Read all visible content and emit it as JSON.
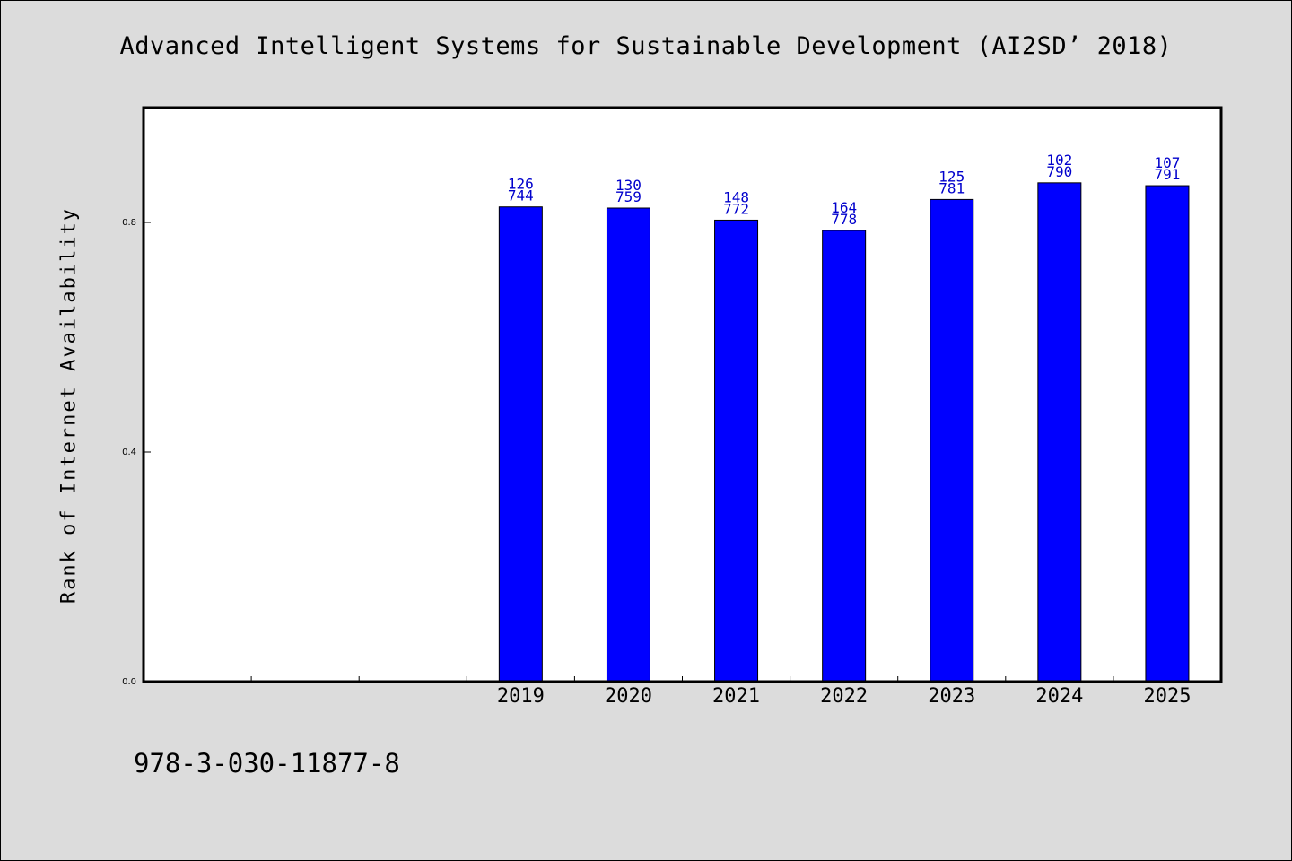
{
  "title": "Advanced Intelligent Systems for Sustainable Development (AI2SD’ 2018)",
  "ylabel": "Rank of Internet Availability",
  "footer": "978-3-030-11877-8",
  "colors": {
    "bar": "#0000ff",
    "label": "#0000cc",
    "plot_bg": "#ffffff",
    "page_bg": "#dcdcdc"
  },
  "chart_data": {
    "type": "bar",
    "categories": [
      "",
      "",
      "",
      "2019",
      "2020",
      "2021",
      "2022",
      "2023",
      "2024",
      "2025"
    ],
    "values": [
      null,
      null,
      null,
      0.827,
      0.825,
      0.804,
      0.786,
      0.84,
      0.869,
      0.864
    ],
    "bar_labels": [
      null,
      null,
      null,
      [
        "126",
        "744"
      ],
      [
        "130",
        "759"
      ],
      [
        "148",
        "772"
      ],
      [
        "164",
        "778"
      ],
      [
        "125",
        "781"
      ],
      [
        "102",
        "790"
      ],
      [
        "107",
        "791"
      ]
    ],
    "yticks": [
      0.0,
      0.4,
      0.8
    ],
    "ytick_labels": [
      "0.0",
      "0.4",
      "0.8"
    ],
    "ylim": [
      0,
      1.0
    ],
    "xlabel": "",
    "ylabel": "Rank of Internet Availability",
    "grid": false,
    "legend": "none"
  }
}
